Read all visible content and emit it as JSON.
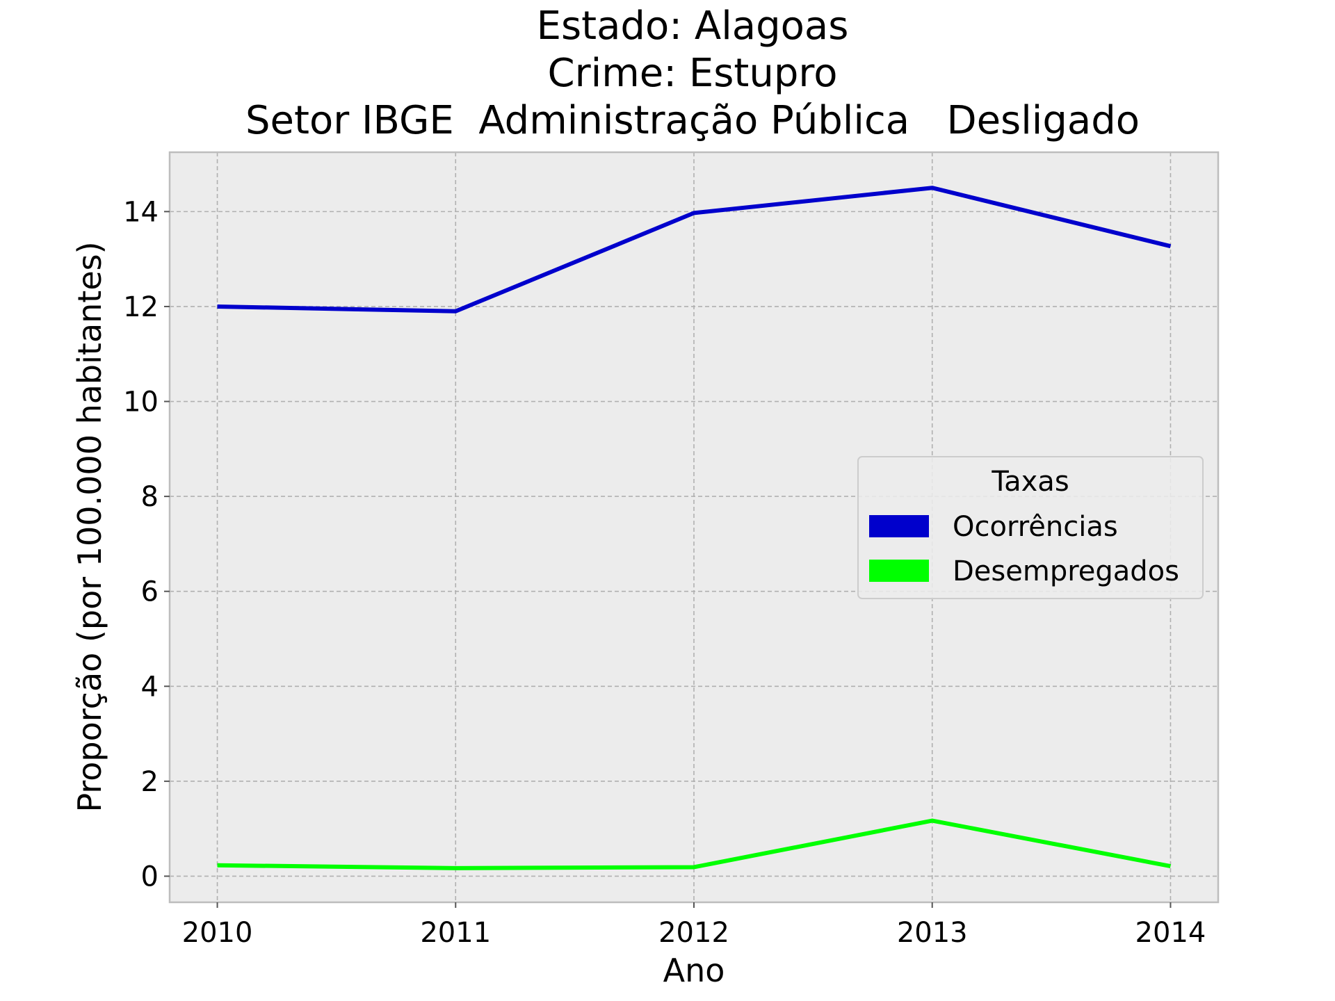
{
  "chart_data": {
    "type": "line",
    "title_lines": [
      "Estado: Alagoas",
      "Crime: Estupro",
      "Setor IBGE  Administração Pública   Desligado"
    ],
    "xlabel": "Ano",
    "ylabel": "Proporção (por 100.000 habitantes)",
    "x": [
      2010,
      2011,
      2012,
      2013,
      2014
    ],
    "x_tick_labels": [
      "2010",
      "2011",
      "2012",
      "2013",
      "2014"
    ],
    "y_ticks": [
      0,
      2,
      4,
      6,
      8,
      10,
      12,
      14
    ],
    "y_tick_labels": [
      "0",
      "2",
      "4",
      "6",
      "8",
      "10",
      "12",
      "14"
    ],
    "xlim": [
      2009.8,
      2014.2
    ],
    "ylim": [
      -0.55,
      15.25
    ],
    "grid": true,
    "legend": {
      "title": "Taxas",
      "placement": "center-right"
    },
    "series": [
      {
        "name": "Ocorrências",
        "color": "#0000cc",
        "values": [
          12.0,
          11.9,
          13.97,
          14.5,
          13.27
        ]
      },
      {
        "name": "Desempregados",
        "color": "#00ff00",
        "values": [
          0.23,
          0.17,
          0.19,
          1.17,
          0.21
        ]
      }
    ],
    "colors": {
      "plot_background": "#ececec",
      "frame": "#bdbdbd"
    }
  }
}
